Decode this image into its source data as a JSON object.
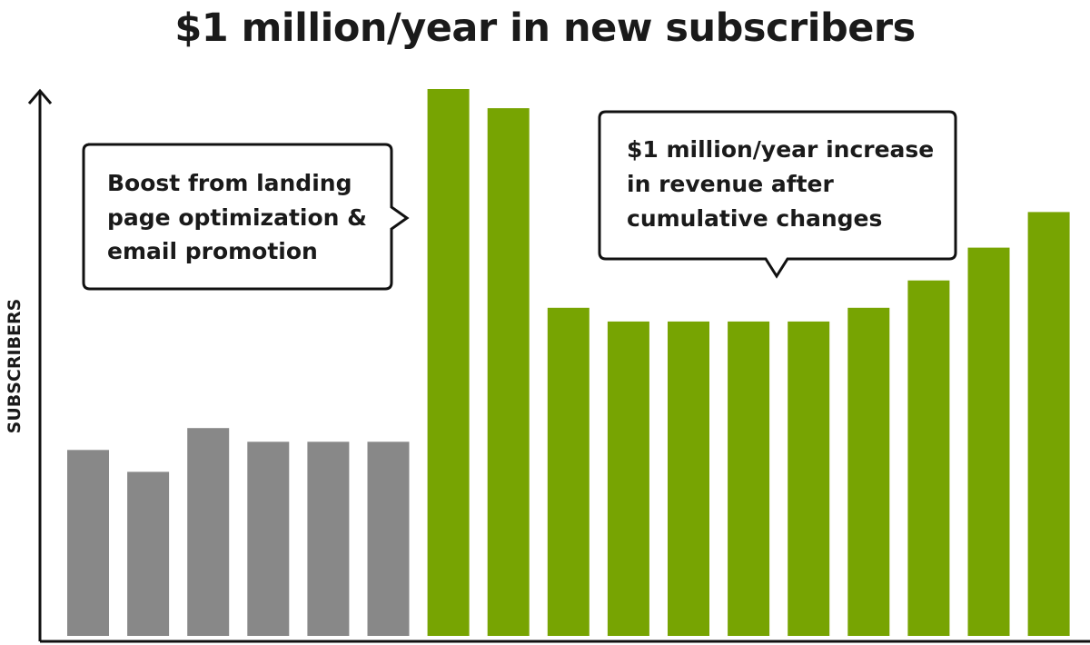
{
  "chart_data": {
    "type": "bar",
    "title": "$1 million/year in new subscribers",
    "xlabel": "",
    "ylabel": "SUBSCRIBERS",
    "ylim": [
      0,
      100
    ],
    "grid": false,
    "values": [
      34,
      30,
      38,
      35.5,
      35.5,
      35.5,
      100,
      96.5,
      60,
      57.5,
      57.5,
      57.5,
      57.5,
      60,
      65,
      71,
      77.5
    ],
    "colors": [
      "#888888",
      "#888888",
      "#888888",
      "#888888",
      "#888888",
      "#888888",
      "#77a402",
      "#77a402",
      "#77a402",
      "#77a402",
      "#77a402",
      "#77a402",
      "#77a402",
      "#77a402",
      "#77a402",
      "#77a402",
      "#77a402"
    ],
    "annotations": [
      {
        "lines": [
          "Boost from landing",
          "page optimization &",
          "email promotion"
        ]
      },
      {
        "lines": [
          "$1 million/year increase",
          "in revenue after",
          "cumulative changes"
        ]
      }
    ]
  }
}
